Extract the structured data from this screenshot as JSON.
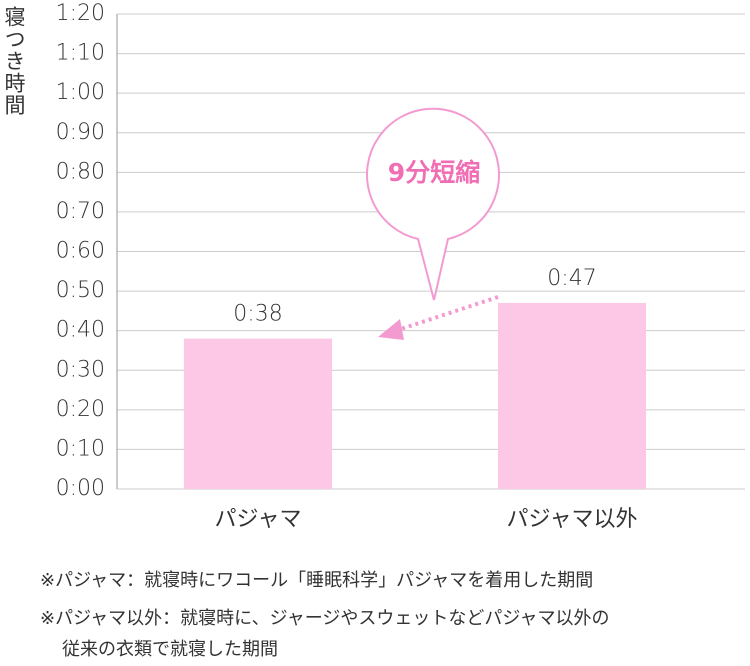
{
  "chart_data": {
    "type": "bar",
    "y_label": "寝つき時間",
    "categories": [
      "パジャマ",
      "パジャマ以外"
    ],
    "values": [
      38,
      47
    ],
    "value_labels": [
      "0:38",
      "0:47"
    ],
    "color": "#fcc8e6",
    "ylim": [
      0,
      120
    ],
    "yticks": [
      {
        "value": 0,
        "label": "0:00"
      },
      {
        "value": 10,
        "label": "0:10"
      },
      {
        "value": 20,
        "label": "0:20"
      },
      {
        "value": 30,
        "label": "0:30"
      },
      {
        "value": 40,
        "label": "0:40"
      },
      {
        "value": 50,
        "label": "0:50"
      },
      {
        "value": 60,
        "label": "0:60"
      },
      {
        "value": 70,
        "label": "0:70"
      },
      {
        "value": 80,
        "label": "0:80"
      },
      {
        "value": 90,
        "label": "0:90"
      },
      {
        "value": 100,
        "label": "1:00"
      },
      {
        "value": 110,
        "label": "1:10"
      },
      {
        "value": 120,
        "label": "1:20"
      }
    ],
    "grid": true,
    "annotation": "9分短縮",
    "notes": [
      "※パジャマ：就寝時にワコール「睡眠科学」パジャマを着用した期間",
      "※パジャマ以外：就寝時に、ジャージやスウェットなどパジャマ以外の",
      "従来の衣類で就寝した期間"
    ]
  }
}
